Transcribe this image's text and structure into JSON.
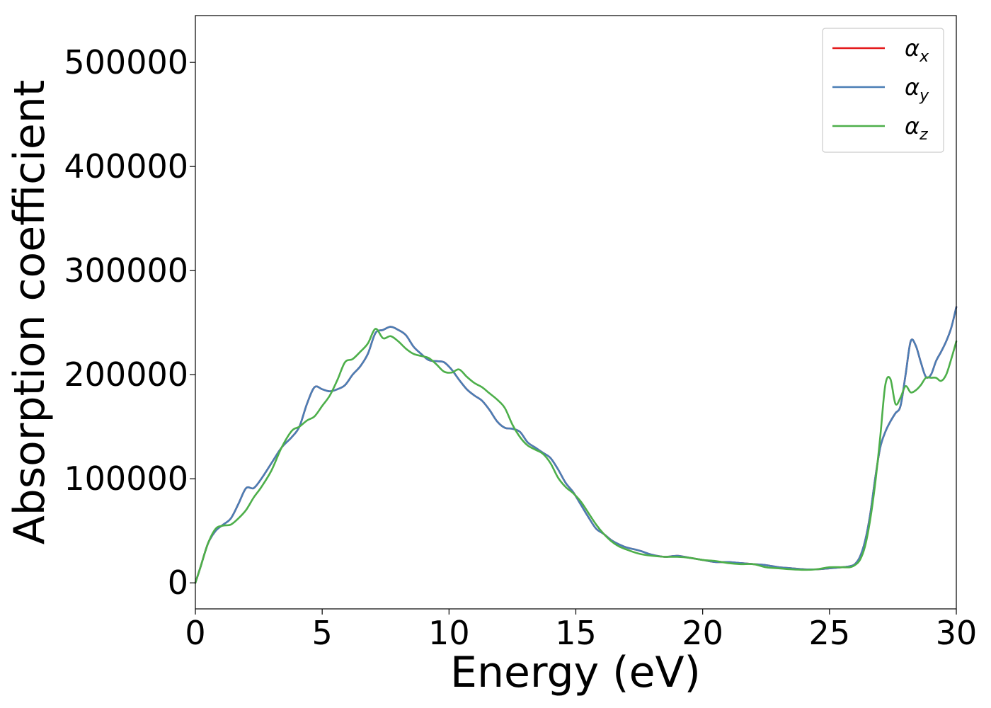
{
  "chart_data": {
    "type": "line",
    "xlabel": "Energy (eV)",
    "ylabel": "Absorption coefficient",
    "xlim": [
      0,
      30
    ],
    "ylim": [
      -25000,
      545000
    ],
    "xticks": [
      0,
      5,
      10,
      15,
      20,
      25,
      30
    ],
    "yticks": [
      0,
      100000,
      200000,
      300000,
      400000,
      500000
    ],
    "grid": false,
    "legend_position": "top-right",
    "series": [
      {
        "name": "αx",
        "legend_base": "α",
        "legend_sub": "x",
        "color": "#e41a1c",
        "x": [
          0,
          0.2,
          0.5,
          0.8,
          1.1,
          1.4,
          1.7,
          2.0,
          2.3,
          2.6,
          3.0,
          3.4,
          3.8,
          4.1,
          4.4,
          4.7,
          5.0,
          5.3,
          5.6,
          5.9,
          6.2,
          6.5,
          6.8,
          7.1,
          7.4,
          7.7,
          8.0,
          8.3,
          8.6,
          8.9,
          9.2,
          9.5,
          9.8,
          10.1,
          10.4,
          10.7,
          11.0,
          11.3,
          11.6,
          11.9,
          12.2,
          12.5,
          12.8,
          13.1,
          13.4,
          13.7,
          14.0,
          14.3,
          14.6,
          14.9,
          15.2,
          15.5,
          15.8,
          16.1,
          16.4,
          16.7,
          17.0,
          17.5,
          18.0,
          18.5,
          19.0,
          19.5,
          20.0,
          20.5,
          21.0,
          21.5,
          22.0,
          22.5,
          23.0,
          23.5,
          24.0,
          24.5,
          25.0,
          25.5,
          25.8,
          26.0,
          26.2,
          26.4,
          26.6,
          26.8,
          27.0,
          27.2,
          27.4,
          27.6,
          27.8,
          28.0,
          28.2,
          28.4,
          28.6,
          28.8,
          29.0,
          29.2,
          29.4,
          29.6,
          29.8,
          30.0
        ],
        "values": [
          0,
          15000,
          38000,
          50000,
          56000,
          62000,
          76000,
          91000,
          91000,
          100000,
          115000,
          130000,
          140000,
          150000,
          172000,
          188000,
          186000,
          184000,
          186000,
          190000,
          200000,
          208000,
          220000,
          240000,
          243000,
          246000,
          243000,
          238000,
          227000,
          220000,
          214000,
          213000,
          212000,
          205000,
          195000,
          186000,
          180000,
          175000,
          166000,
          155000,
          149000,
          148000,
          145000,
          135000,
          130000,
          125000,
          120000,
          109000,
          96000,
          87000,
          75000,
          63000,
          52000,
          47000,
          41000,
          37000,
          34000,
          31000,
          27000,
          25000,
          26000,
          24000,
          22000,
          20000,
          20000,
          19000,
          18000,
          17000,
          15000,
          14000,
          13000,
          13000,
          14000,
          15000,
          16000,
          18000,
          25000,
          40000,
          65000,
          100000,
          130000,
          145000,
          155000,
          163000,
          170000,
          200000,
          232000,
          228000,
          212000,
          198000,
          200000,
          213000,
          222000,
          232000,
          245000,
          265000
        ]
      },
      {
        "name": "αy",
        "legend_base": "α",
        "legend_sub": "y",
        "color": "#4a7eb5",
        "x": [
          0,
          0.2,
          0.5,
          0.8,
          1.1,
          1.4,
          1.7,
          2.0,
          2.3,
          2.6,
          3.0,
          3.4,
          3.8,
          4.1,
          4.4,
          4.7,
          5.0,
          5.3,
          5.6,
          5.9,
          6.2,
          6.5,
          6.8,
          7.1,
          7.4,
          7.7,
          8.0,
          8.3,
          8.6,
          8.9,
          9.2,
          9.5,
          9.8,
          10.1,
          10.4,
          10.7,
          11.0,
          11.3,
          11.6,
          11.9,
          12.2,
          12.5,
          12.8,
          13.1,
          13.4,
          13.7,
          14.0,
          14.3,
          14.6,
          14.9,
          15.2,
          15.5,
          15.8,
          16.1,
          16.4,
          16.7,
          17.0,
          17.5,
          18.0,
          18.5,
          19.0,
          19.5,
          20.0,
          20.5,
          21.0,
          21.5,
          22.0,
          22.5,
          23.0,
          23.5,
          24.0,
          24.5,
          25.0,
          25.5,
          25.8,
          26.0,
          26.2,
          26.4,
          26.6,
          26.8,
          27.0,
          27.2,
          27.4,
          27.6,
          27.8,
          28.0,
          28.2,
          28.4,
          28.6,
          28.8,
          29.0,
          29.2,
          29.4,
          29.6,
          29.8,
          30.0
        ],
        "values": [
          0,
          15000,
          38000,
          50000,
          56000,
          62000,
          76000,
          91000,
          91000,
          100000,
          115000,
          130000,
          140000,
          150000,
          172000,
          188000,
          186000,
          184000,
          186000,
          190000,
          200000,
          208000,
          220000,
          240000,
          243000,
          246000,
          243000,
          238000,
          227000,
          220000,
          214000,
          213000,
          212000,
          205000,
          195000,
          186000,
          180000,
          175000,
          166000,
          155000,
          149000,
          148000,
          145000,
          135000,
          130000,
          125000,
          120000,
          109000,
          96000,
          87000,
          75000,
          63000,
          52000,
          47000,
          41000,
          37000,
          34000,
          31000,
          27000,
          25000,
          26000,
          24000,
          22000,
          20000,
          20000,
          19000,
          18000,
          17000,
          15000,
          14000,
          13000,
          13000,
          14000,
          15000,
          16000,
          18000,
          25000,
          40000,
          65000,
          100000,
          130000,
          145000,
          155000,
          163000,
          170000,
          200000,
          232000,
          228000,
          212000,
          198000,
          200000,
          213000,
          222000,
          232000,
          245000,
          265000
        ]
      },
      {
        "name": "αz",
        "legend_base": "α",
        "legend_sub": "z",
        "color": "#4daf4a",
        "x": [
          0,
          0.2,
          0.5,
          0.8,
          1.1,
          1.4,
          1.7,
          2.0,
          2.3,
          2.6,
          3.0,
          3.4,
          3.8,
          4.1,
          4.4,
          4.7,
          5.0,
          5.3,
          5.6,
          5.9,
          6.2,
          6.5,
          6.8,
          7.1,
          7.4,
          7.7,
          8.0,
          8.3,
          8.6,
          8.9,
          9.2,
          9.5,
          9.8,
          10.1,
          10.4,
          10.7,
          11.0,
          11.3,
          11.6,
          11.9,
          12.2,
          12.5,
          12.8,
          13.1,
          13.4,
          13.7,
          14.0,
          14.3,
          14.6,
          14.9,
          15.2,
          15.5,
          15.8,
          16.1,
          16.4,
          16.7,
          17.0,
          17.5,
          18.0,
          18.5,
          19.0,
          19.5,
          20.0,
          20.5,
          21.0,
          21.5,
          22.0,
          22.5,
          23.0,
          23.5,
          24.0,
          24.5,
          25.0,
          25.5,
          25.8,
          26.0,
          26.2,
          26.4,
          26.6,
          26.8,
          27.0,
          27.2,
          27.4,
          27.6,
          27.8,
          28.0,
          28.2,
          28.4,
          28.6,
          28.8,
          29.0,
          29.2,
          29.4,
          29.6,
          29.8,
          30.0
        ],
        "values": [
          0,
          15000,
          38000,
          52000,
          55000,
          56000,
          62000,
          70000,
          82000,
          92000,
          108000,
          130000,
          146000,
          150000,
          156000,
          160000,
          170000,
          180000,
          195000,
          212000,
          215000,
          222000,
          230000,
          244000,
          235000,
          237000,
          232000,
          225000,
          220000,
          218000,
          216000,
          210000,
          203000,
          202000,
          205000,
          198000,
          192000,
          188000,
          182000,
          176000,
          168000,
          152000,
          140000,
          132000,
          128000,
          124000,
          115000,
          101000,
          92000,
          86000,
          78000,
          67000,
          56000,
          47000,
          40000,
          35000,
          32000,
          28000,
          26000,
          25000,
          25000,
          24000,
          22000,
          21000,
          19000,
          18000,
          18000,
          15000,
          14000,
          13000,
          12500,
          13000,
          15000,
          15000,
          15000,
          17000,
          22000,
          35000,
          60000,
          95000,
          140000,
          190000,
          196000,
          172000,
          178000,
          189000,
          183000,
          185000,
          190000,
          197000,
          197000,
          197000,
          194000,
          200000,
          215000,
          232000
        ]
      }
    ]
  }
}
